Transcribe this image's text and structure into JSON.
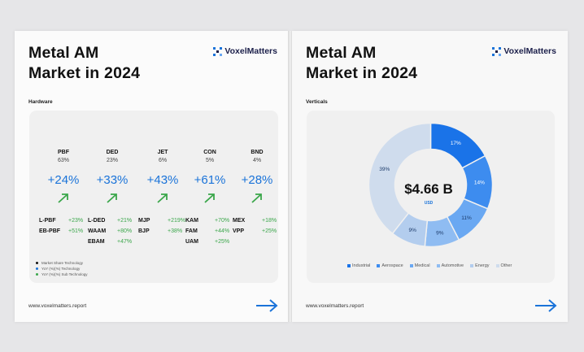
{
  "left": {
    "title_line1": "Metal AM",
    "title_line2": "Market in 2024",
    "logo": "VoxelMatters",
    "section": "Hardware",
    "columns": [
      {
        "name": "PBF",
        "share": "63%",
        "growth": "+24%",
        "items": [
          {
            "n": "L-PBF",
            "g": "+23%"
          },
          {
            "n": "EB-PBF",
            "g": "+51%"
          }
        ]
      },
      {
        "name": "DED",
        "share": "23%",
        "growth": "+33%",
        "items": [
          {
            "n": "L-DED",
            "g": "+21%"
          },
          {
            "n": "WAAM",
            "g": "+80%"
          },
          {
            "n": "EBAM",
            "g": "+47%"
          }
        ]
      },
      {
        "name": "JET",
        "share": "6%",
        "growth": "+43%",
        "items": [
          {
            "n": "MJP",
            "g": "+219%"
          },
          {
            "n": "BJP",
            "g": "+38%"
          }
        ]
      },
      {
        "name": "CON",
        "share": "5%",
        "growth": "+61%",
        "items": [
          {
            "n": "KAM",
            "g": "+70%"
          },
          {
            "n": "FAM",
            "g": "+44%"
          },
          {
            "n": "UAM",
            "g": "+25%"
          }
        ]
      },
      {
        "name": "BND",
        "share": "4%",
        "growth": "+28%",
        "items": [
          {
            "n": "MEX",
            "g": "+18%"
          },
          {
            "n": "VPP",
            "g": "+25%"
          }
        ]
      }
    ],
    "legend": [
      "Market Share Technology",
      "YoY (%)(%) Technology",
      "YoY (%)(%) Sub Technology"
    ],
    "footer": "www.voxelmatters.report"
  },
  "right": {
    "title_line1": "Metal AM",
    "title_line2": "Market in 2024",
    "logo": "VoxelMatters",
    "section": "Verticals",
    "center_value": "$4.66 B",
    "center_unit": "USD",
    "footer": "www.voxelmatters.report"
  },
  "chart_data": {
    "type": "pie",
    "categories": [
      "Industrial",
      "Aerospace",
      "Medical",
      "Automotive",
      "Energy",
      "Other"
    ],
    "values": [
      17,
      14,
      11,
      9,
      9,
      39
    ],
    "labels": [
      "17%",
      "14%",
      "11%",
      "9%",
      "9%",
      "39%"
    ],
    "colors": [
      "#1a73e8",
      "#3d8cef",
      "#6aa8f2",
      "#8fbcf2",
      "#b3cdee",
      "#cfdced"
    ],
    "legend": "bottom"
  },
  "colors": {
    "accent": "#1a73d9",
    "growth": "#3aa64a"
  }
}
